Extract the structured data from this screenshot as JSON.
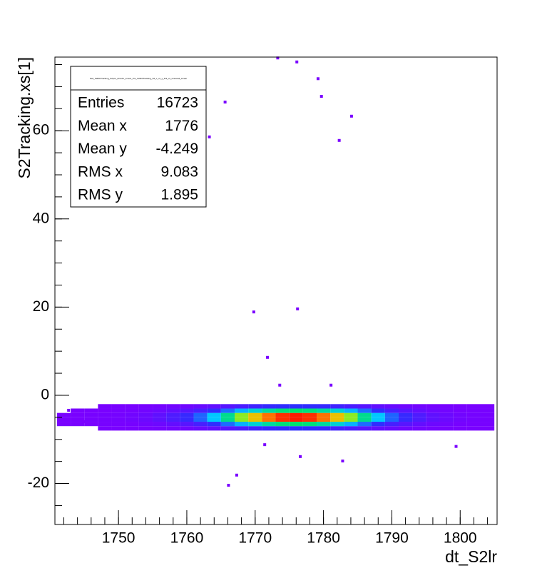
{
  "chart_data": {
    "type": "heatmap",
    "x_label": "dt_S2lr",
    "y_label": "S2Tracking.xs[1]",
    "xlim": [
      1740.7,
      1805.4
    ],
    "ylim": [
      -29.3,
      76.7
    ],
    "xticks": [
      1750,
      1760,
      1770,
      1780,
      1790,
      1800
    ],
    "yticks": [
      -20,
      0,
      20,
      40,
      60
    ],
    "x_minor_step": 2,
    "y_minor_step": 5,
    "xbins": [
      1741,
      1743,
      1745,
      1747,
      1749,
      1751,
      1753,
      1755,
      1757,
      1759,
      1761,
      1763,
      1765,
      1767,
      1769,
      1771,
      1773,
      1775,
      1777,
      1779,
      1781,
      1783,
      1785,
      1787,
      1789,
      1791,
      1793,
      1795,
      1797,
      1799,
      1801,
      1803,
      1805
    ],
    "ybins": [
      -8,
      -7,
      -6,
      -5,
      -4,
      -3,
      -2
    ],
    "counts": [
      [
        0,
        0,
        0,
        1,
        1,
        1,
        2,
        4,
        6,
        9,
        14,
        20,
        28,
        37,
        46,
        54,
        58,
        60,
        58,
        54,
        46,
        37,
        28,
        20,
        14,
        9,
        6,
        4,
        2,
        1,
        1,
        1
      ],
      [
        1,
        1,
        1,
        2,
        2,
        3,
        6,
        10,
        17,
        27,
        40,
        60,
        84,
        111,
        138,
        160,
        175,
        180,
        175,
        160,
        138,
        111,
        84,
        60,
        40,
        27,
        17,
        10,
        6,
        3,
        2,
        2
      ],
      [
        1,
        1,
        2,
        3,
        4,
        7,
        12,
        21,
        35,
        54,
        81,
        120,
        168,
        222,
        276,
        321,
        351,
        360,
        351,
        321,
        276,
        222,
        168,
        120,
        81,
        54,
        35,
        21,
        12,
        7,
        4,
        3
      ],
      [
        1,
        1,
        2,
        3,
        4,
        7,
        12,
        21,
        35,
        54,
        81,
        120,
        168,
        222,
        276,
        321,
        351,
        360,
        351,
        321,
        276,
        222,
        168,
        120,
        81,
        54,
        35,
        21,
        12,
        7,
        4,
        3
      ],
      [
        0,
        1,
        1,
        1,
        2,
        3,
        6,
        10,
        17,
        27,
        40,
        60,
        84,
        111,
        138,
        160,
        175,
        180,
        175,
        160,
        138,
        111,
        84,
        60,
        40,
        27,
        17,
        10,
        6,
        3,
        2,
        2
      ],
      [
        0,
        0,
        0,
        1,
        1,
        1,
        2,
        4,
        6,
        9,
        14,
        20,
        28,
        37,
        46,
        54,
        58,
        60,
        58,
        54,
        46,
        37,
        28,
        20,
        14,
        9,
        6,
        4,
        2,
        1,
        1,
        1
      ]
    ],
    "palette": [
      "#7a00ff",
      "#2e2eff",
      "#00c8ff",
      "#00e070",
      "#c8f000",
      "#ffa000",
      "#ff1a00"
    ],
    "outliers": {
      "x": [
        1773.3,
        1776.1,
        1779.2,
        1779.7,
        1765.6,
        1784.1,
        1763.3,
        1782.3,
        1769.8,
        1776.2,
        1771.8,
        1773.6,
        1781.1,
        1776.6,
        1782.8,
        1767.3,
        1766.1,
        1771.4,
        1799.4,
        1742.7,
        1744.9
      ],
      "y": [
        76.5,
        75.6,
        71.8,
        67.8,
        66.5,
        63.3,
        58.6,
        57.8,
        18.9,
        19.6,
        8.6,
        2.3,
        2.3,
        -13.9,
        -14.9,
        -18.1,
        -20.4,
        -11.2,
        -11.6,
        -3.4,
        -6.0
      ]
    },
    "stats": {
      "title": "Ped_S2lrDtTracking_S2pos_dtmslrx_smear_Pre_S2lrDtTracking_S2_x_vs_y_Pol_vs_smeared_smear",
      "rows": [
        [
          "Entries",
          "16723"
        ],
        [
          "Mean x",
          "1776"
        ],
        [
          "Mean y",
          "-4.249"
        ],
        [
          "RMS x",
          "9.083"
        ],
        [
          "RMS y",
          "1.895"
        ]
      ]
    }
  }
}
